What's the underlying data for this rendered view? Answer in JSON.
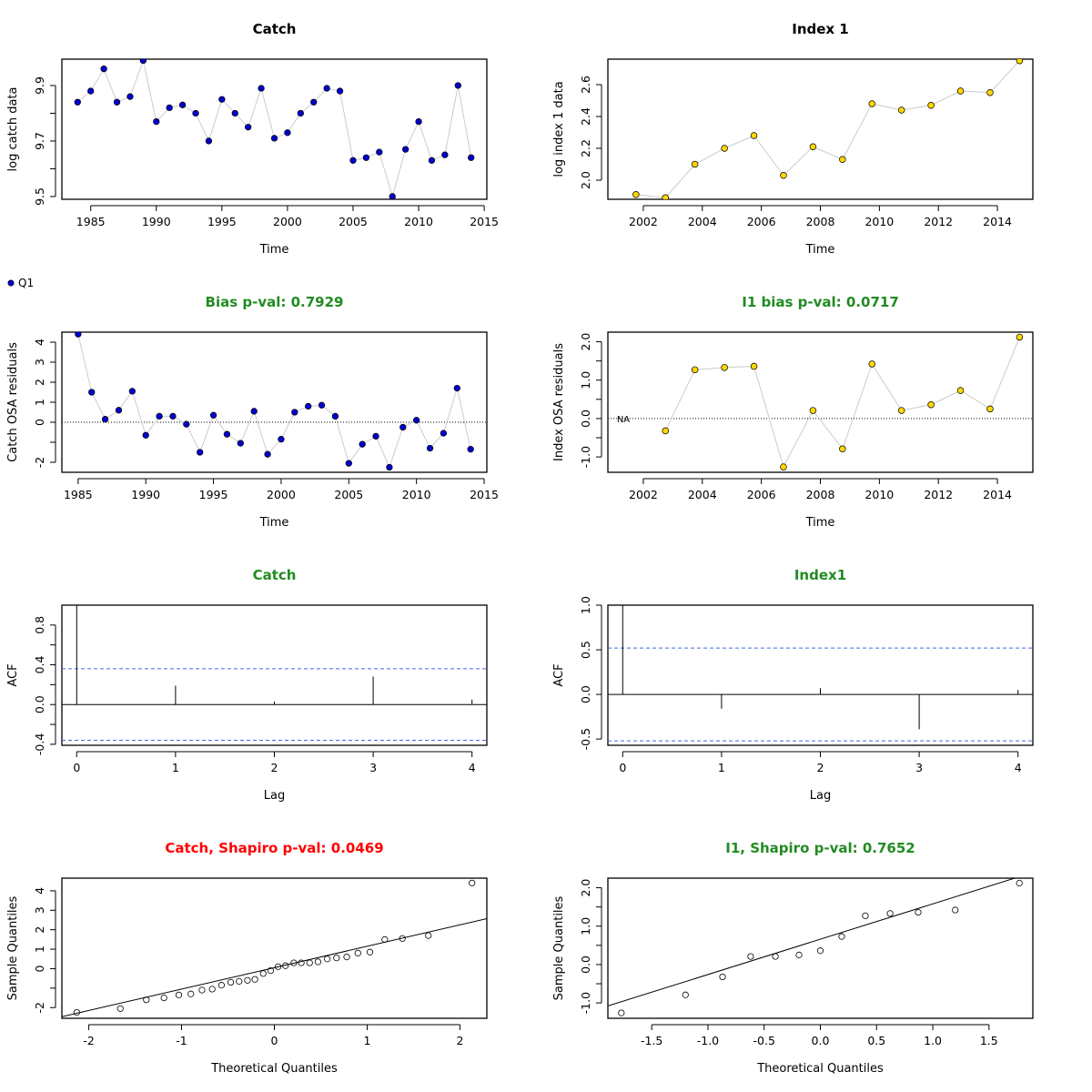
{
  "legend_label": "Q1",
  "colors": {
    "catch_point": "#0000cd",
    "index_point": "#ffd700",
    "title_black": "#000000",
    "title_green": "#228b22",
    "title_red": "#ff0000",
    "ci_line": "#4169e1",
    "connector": "#cccccc"
  },
  "chart_data": [
    {
      "id": "catch_ts",
      "type": "line",
      "title": "Catch",
      "title_color": "#000000",
      "xlabel": "Time",
      "ylabel": "log catch data",
      "xlim": [
        1982.8,
        2015.2
      ],
      "ylim": [
        9.49,
        9.995
      ],
      "xticks": [
        1985,
        1990,
        1995,
        2000,
        2005,
        2010,
        2015
      ],
      "xtick_labels": [
        "1985",
        "1990",
        "1995",
        "2000",
        "2005",
        "2010",
        "2015"
      ],
      "yticks": [
        9.5,
        9.6,
        9.7,
        9.8,
        9.9
      ],
      "ytick_labels": [
        "9.5",
        "",
        "9.7",
        "",
        "9.9"
      ],
      "point_style": "catch",
      "x": [
        1984,
        1985,
        1986,
        1987,
        1988,
        1989,
        1990,
        1991,
        1992,
        1993,
        1994,
        1995,
        1996,
        1997,
        1998,
        1999,
        2000,
        2001,
        2002,
        2003,
        2004,
        2005,
        2006,
        2007,
        2008,
        2009,
        2010,
        2011,
        2012,
        2013,
        2014
      ],
      "y": [
        9.84,
        9.88,
        9.96,
        9.84,
        9.86,
        9.99,
        9.77,
        9.82,
        9.83,
        9.8,
        9.7,
        9.85,
        9.8,
        9.75,
        9.89,
        9.71,
        9.73,
        9.8,
        9.84,
        9.89,
        9.88,
        9.63,
        9.64,
        9.66,
        9.5,
        9.67,
        9.77,
        9.63,
        9.65,
        9.9,
        9.64
      ]
    },
    {
      "id": "index_ts",
      "type": "line",
      "title": "Index 1",
      "title_color": "#000000",
      "xlabel": "Time",
      "ylabel": "log index 1 data",
      "xlim": [
        2000.8,
        2015.2
      ],
      "ylim": [
        1.88,
        2.76
      ],
      "xticks": [
        2002,
        2004,
        2006,
        2008,
        2010,
        2012,
        2014
      ],
      "xtick_labels": [
        "2002",
        "2004",
        "2006",
        "2008",
        "2010",
        "2012",
        "2014"
      ],
      "yticks": [
        2.0,
        2.2,
        2.4,
        2.6
      ],
      "ytick_labels": [
        "2.0",
        "2.2",
        "2.4",
        "2.6"
      ],
      "point_style": "index",
      "x": [
        2001.75,
        2002.75,
        2003.75,
        2004.75,
        2005.75,
        2006.75,
        2007.75,
        2008.75,
        2009.75,
        2010.75,
        2011.75,
        2012.75,
        2013.75,
        2014.75
      ],
      "y": [
        1.91,
        1.89,
        2.1,
        2.2,
        2.28,
        2.03,
        2.21,
        2.13,
        2.48,
        2.44,
        2.47,
        2.56,
        2.55,
        2.75
      ]
    },
    {
      "id": "catch_resid",
      "type": "line",
      "title": "Bias p-val: 0.7929",
      "title_color": "#228b22",
      "xlabel": "Time",
      "ylabel": "Catch OSA residuals",
      "xlim": [
        1983.8,
        2015.2
      ],
      "ylim": [
        -2.5,
        4.5
      ],
      "xticks": [
        1985,
        1990,
        1995,
        2000,
        2005,
        2010,
        2015
      ],
      "xtick_labels": [
        "1985",
        "1990",
        "1995",
        "2000",
        "2005",
        "2010",
        "2015"
      ],
      "yticks": [
        -2,
        -1,
        0,
        1,
        2,
        3,
        4
      ],
      "ytick_labels": [
        "-2",
        "",
        "0",
        "1",
        "2",
        "3",
        "4"
      ],
      "hline": 0,
      "point_style": "catch",
      "x": [
        1985,
        1986,
        1987,
        1988,
        1989,
        1990,
        1991,
        1992,
        1993,
        1994,
        1995,
        1996,
        1997,
        1998,
        1999,
        2000,
        2001,
        2002,
        2003,
        2004,
        2005,
        2006,
        2007,
        2008,
        2009,
        2010,
        2011,
        2012,
        2013,
        2014
      ],
      "y": [
        4.4,
        1.5,
        0.15,
        0.6,
        1.55,
        -0.65,
        0.3,
        0.3,
        -0.1,
        -1.5,
        0.35,
        -0.6,
        -1.05,
        0.55,
        -1.6,
        -0.85,
        0.5,
        0.8,
        0.85,
        0.3,
        -2.05,
        -1.1,
        -0.7,
        -2.25,
        -0.25,
        0.1,
        -1.3,
        -0.55,
        1.7,
        -1.35
      ]
    },
    {
      "id": "index_resid",
      "type": "line",
      "title": "I1 bias p-val: 0.0717",
      "title_color": "#228b22",
      "xlabel": "Time",
      "ylabel": "Index OSA residuals",
      "xlim": [
        2000.8,
        2015.2
      ],
      "ylim": [
        -1.4,
        2.25
      ],
      "xticks": [
        2002,
        2004,
        2006,
        2008,
        2010,
        2012,
        2014
      ],
      "xtick_labels": [
        "2002",
        "2004",
        "2006",
        "2008",
        "2010",
        "2012",
        "2014"
      ],
      "yticks": [
        -1.0,
        -0.5,
        0.0,
        0.5,
        1.0,
        1.5,
        2.0
      ],
      "ytick_labels": [
        "-1.0",
        "",
        "0.0",
        "",
        "1.0",
        "",
        "2.0"
      ],
      "hline": 0,
      "na_label": "NA",
      "point_style": "index",
      "x": [
        2002.75,
        2003.75,
        2004.75,
        2005.75,
        2006.75,
        2007.75,
        2008.75,
        2009.75,
        2010.75,
        2011.75,
        2012.75,
        2013.75,
        2014.75
      ],
      "y": [
        -0.32,
        1.27,
        1.33,
        1.36,
        -1.26,
        0.21,
        -0.79,
        1.42,
        0.21,
        0.36,
        0.73,
        0.25,
        2.12
      ]
    },
    {
      "id": "catch_acf",
      "type": "bar",
      "title": "Catch",
      "title_color": "#228b22",
      "xlabel": "Lag",
      "ylabel": "ACF",
      "xlim": [
        -0.15,
        4.15
      ],
      "ylim": [
        -0.41,
        1.0
      ],
      "xticks": [
        0,
        1,
        2,
        3,
        4
      ],
      "xtick_labels": [
        "0",
        "1",
        "2",
        "3",
        "4"
      ],
      "yticks": [
        -0.4,
        -0.2,
        0.0,
        0.2,
        0.4,
        0.6,
        0.8
      ],
      "ytick_labels": [
        "-0.4",
        "",
        "0.0",
        "",
        "0.4",
        "",
        "0.8"
      ],
      "categories": [
        0,
        1,
        2,
        3,
        4
      ],
      "values": [
        1.0,
        0.19,
        0.03,
        0.28,
        0.05
      ],
      "ci": 0.36
    },
    {
      "id": "index_acf",
      "type": "bar",
      "title": "Index1",
      "title_color": "#228b22",
      "xlabel": "Lag",
      "ylabel": "ACF",
      "xlim": [
        -0.15,
        4.15
      ],
      "ylim": [
        -0.57,
        1.0
      ],
      "xticks": [
        0,
        1,
        2,
        3,
        4
      ],
      "xtick_labels": [
        "0",
        "1",
        "2",
        "3",
        "4"
      ],
      "yticks": [
        -0.5,
        0.0,
        0.5,
        1.0
      ],
      "ytick_labels": [
        "-0.5",
        "0.0",
        "0.5",
        "1.0"
      ],
      "categories": [
        0,
        1,
        2,
        3,
        4
      ],
      "values": [
        1.0,
        -0.16,
        0.07,
        -0.39,
        0.05
      ],
      "ci": 0.52
    },
    {
      "id": "catch_qq",
      "type": "scatter",
      "title": "Catch, Shapiro p-val: 0.0469",
      "title_color": "#ff0000",
      "xlabel": "Theoretical Quantiles",
      "ylabel": "Sample Quantiles",
      "xlim": [
        -2.29,
        2.29
      ],
      "ylim": [
        -2.55,
        4.65
      ],
      "xticks": [
        -2,
        -1,
        0,
        1,
        2
      ],
      "xtick_labels": [
        "-2",
        "-1",
        "0",
        "1",
        "2"
      ],
      "yticks": [
        -2,
        -1,
        0,
        1,
        2,
        3,
        4
      ],
      "ytick_labels": [
        "-2",
        "",
        "0",
        "1",
        "2",
        "3",
        "4"
      ],
      "qq_line": {
        "intercept": 0.05,
        "slope": 1.1
      },
      "x": [
        -2.13,
        -1.66,
        -1.38,
        -1.19,
        -1.03,
        -0.9,
        -0.78,
        -0.67,
        -0.57,
        -0.47,
        -0.38,
        -0.29,
        -0.21,
        -0.12,
        -0.04,
        0.04,
        0.12,
        0.21,
        0.29,
        0.38,
        0.47,
        0.57,
        0.67,
        0.78,
        0.9,
        1.03,
        1.19,
        1.38,
        1.66,
        2.13
      ],
      "y": [
        -2.25,
        -2.05,
        -1.6,
        -1.5,
        -1.35,
        -1.3,
        -1.1,
        -1.05,
        -0.85,
        -0.7,
        -0.65,
        -0.6,
        -0.55,
        -0.25,
        -0.1,
        0.1,
        0.15,
        0.3,
        0.3,
        0.3,
        0.35,
        0.5,
        0.55,
        0.6,
        0.8,
        0.85,
        1.5,
        1.55,
        1.7,
        4.4
      ]
    },
    {
      "id": "index_qq",
      "type": "scatter",
      "title": "I1, Shapiro p-val: 0.7652",
      "title_color": "#228b22",
      "xlabel": "Theoretical Quantiles",
      "ylabel": "Sample Quantiles",
      "xlim": [
        -1.89,
        1.89
      ],
      "ylim": [
        -1.4,
        2.25
      ],
      "xticks": [
        -1.5,
        -1.0,
        -0.5,
        0.0,
        0.5,
        1.0,
        1.5
      ],
      "xtick_labels": [
        "-1.5",
        "-1.0",
        "-0.5",
        "0.0",
        "0.5",
        "1.0",
        "1.5"
      ],
      "yticks": [
        -1.0,
        -0.5,
        0.0,
        0.5,
        1.0,
        1.5,
        2.0
      ],
      "ytick_labels": [
        "-1.0",
        "",
        "0.0",
        "",
        "1.0",
        "",
        "2.0"
      ],
      "qq_line": {
        "intercept": 0.66,
        "slope": 0.92
      },
      "x": [
        -1.77,
        -1.2,
        -0.87,
        -0.62,
        -0.4,
        -0.19,
        0.0,
        0.19,
        0.4,
        0.62,
        0.87,
        1.2,
        1.77
      ],
      "y": [
        -1.26,
        -0.79,
        -0.32,
        0.21,
        0.21,
        0.25,
        0.36,
        0.73,
        1.27,
        1.33,
        1.36,
        1.42,
        2.12
      ]
    }
  ]
}
